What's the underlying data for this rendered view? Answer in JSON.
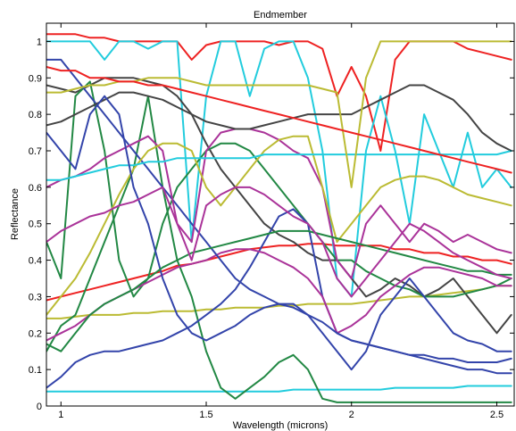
{
  "chart_data": {
    "type": "line",
    "title": "Endmember",
    "xlabel": "Wavelength (microns)",
    "ylabel": "Reflectance",
    "xlim": [
      0.95,
      2.56
    ],
    "ylim": [
      0,
      1.05
    ],
    "xticks": [
      1,
      1.5,
      2,
      2.5
    ],
    "xtick_labels": [
      "1",
      "1.5",
      "2",
      "2.5"
    ],
    "yticks": [
      0,
      0.1,
      0.2,
      0.3,
      0.4,
      0.5,
      0.6,
      0.7,
      0.8,
      0.9,
      1
    ],
    "ytick_labels": [
      "0",
      "0.1",
      "0.2",
      "0.3",
      "0.4",
      "0.5",
      "0.6",
      "0.7",
      "0.8",
      "0.9",
      "1"
    ],
    "grid": false,
    "legend": "none",
    "x": [
      0.95,
      1.0,
      1.05,
      1.1,
      1.15,
      1.2,
      1.25,
      1.3,
      1.35,
      1.4,
      1.45,
      1.5,
      1.55,
      1.6,
      1.65,
      1.7,
      1.75,
      1.8,
      1.85,
      1.9,
      1.95,
      2.0,
      2.05,
      2.1,
      2.15,
      2.2,
      2.25,
      2.3,
      2.35,
      2.4,
      2.45,
      2.5,
      2.55
    ],
    "series": [
      {
        "color": "#22ccdd",
        "values": [
          0.04,
          0.04,
          0.04,
          0.04,
          0.04,
          0.04,
          0.04,
          0.04,
          0.04,
          0.04,
          0.04,
          0.04,
          0.04,
          0.04,
          0.04,
          0.04,
          0.04,
          0.045,
          0.045,
          0.045,
          0.045,
          0.045,
          0.045,
          0.045,
          0.05,
          0.05,
          0.05,
          0.05,
          0.05,
          0.055,
          0.055,
          0.055,
          0.055
        ]
      },
      {
        "color": "#bbbb33",
        "values": [
          0.24,
          0.24,
          0.245,
          0.25,
          0.25,
          0.25,
          0.255,
          0.255,
          0.26,
          0.26,
          0.26,
          0.265,
          0.265,
          0.27,
          0.27,
          0.27,
          0.275,
          0.275,
          0.28,
          0.28,
          0.28,
          0.28,
          0.285,
          0.29,
          0.295,
          0.3,
          0.3,
          0.305,
          0.31,
          0.315,
          0.32,
          0.33,
          0.33
        ]
      },
      {
        "color": "#ee2222",
        "values": [
          0.29,
          0.3,
          0.31,
          0.32,
          0.33,
          0.34,
          0.35,
          0.36,
          0.37,
          0.385,
          0.39,
          0.4,
          0.41,
          0.42,
          0.43,
          0.435,
          0.44,
          0.44,
          0.445,
          0.445,
          0.44,
          0.44,
          0.44,
          0.44,
          0.43,
          0.43,
          0.42,
          0.42,
          0.41,
          0.41,
          0.4,
          0.4,
          0.39
        ]
      },
      {
        "color": "#ee2222",
        "values": [
          1.02,
          1.02,
          1.02,
          1.01,
          1.01,
          1.0,
          1.0,
          1.0,
          1.0,
          1.0,
          0.95,
          0.99,
          1.0,
          1.0,
          1.0,
          1.0,
          0.99,
          1.0,
          1.0,
          0.98,
          0.85,
          0.93,
          0.85,
          0.7,
          0.95,
          1.0,
          1.0,
          1.0,
          1.0,
          0.98,
          0.97,
          0.96,
          0.95
        ]
      },
      {
        "color": "#22ccdd",
        "values": [
          1.0,
          1.0,
          1.0,
          1.0,
          0.95,
          1.0,
          1.0,
          0.98,
          1.0,
          1.0,
          0.45,
          0.85,
          1.0,
          1.0,
          0.85,
          0.98,
          1.0,
          1.0,
          0.9,
          0.7,
          0.35,
          0.3,
          0.7,
          0.85,
          0.7,
          0.5,
          0.8,
          0.7,
          0.6,
          0.75,
          0.6,
          0.65,
          0.6
        ]
      },
      {
        "color": "#444444",
        "values": [
          0.88,
          0.87,
          0.86,
          0.88,
          0.9,
          0.9,
          0.9,
          0.89,
          0.88,
          0.85,
          0.8,
          0.72,
          0.65,
          0.6,
          0.55,
          0.5,
          0.47,
          0.45,
          0.42,
          0.4,
          0.4,
          0.35,
          0.3,
          0.32,
          0.35,
          0.33,
          0.3,
          0.32,
          0.35,
          0.3,
          0.25,
          0.2,
          0.25
        ]
      },
      {
        "color": "#228844",
        "values": [
          0.45,
          0.35,
          0.85,
          0.89,
          0.7,
          0.4,
          0.3,
          0.35,
          0.5,
          0.6,
          0.65,
          0.7,
          0.72,
          0.72,
          0.7,
          0.65,
          0.6,
          0.55,
          0.5,
          0.45,
          0.4,
          0.4,
          0.37,
          0.35,
          0.33,
          0.32,
          0.3,
          0.3,
          0.3,
          0.31,
          0.32,
          0.33,
          0.35
        ]
      },
      {
        "color": "#228844",
        "values": [
          0.15,
          0.22,
          0.25,
          0.35,
          0.45,
          0.55,
          0.65,
          0.85,
          0.6,
          0.4,
          0.3,
          0.15,
          0.05,
          0.02,
          0.05,
          0.08,
          0.12,
          0.14,
          0.1,
          0.02,
          0.01,
          0.01,
          0.01,
          0.01,
          0.01,
          0.01,
          0.01,
          0.01,
          0.01,
          0.01,
          0.01,
          0.01,
          0.01
        ]
      },
      {
        "color": "#3344aa",
        "values": [
          0.05,
          0.08,
          0.12,
          0.14,
          0.15,
          0.15,
          0.16,
          0.17,
          0.18,
          0.2,
          0.22,
          0.25,
          0.28,
          0.32,
          0.38,
          0.45,
          0.52,
          0.54,
          0.5,
          0.3,
          0.2,
          0.18,
          0.17,
          0.16,
          0.15,
          0.14,
          0.14,
          0.13,
          0.13,
          0.12,
          0.12,
          0.12,
          0.13
        ]
      },
      {
        "color": "#aa3399",
        "values": [
          0.18,
          0.2,
          0.22,
          0.25,
          0.28,
          0.3,
          0.32,
          0.34,
          0.36,
          0.38,
          0.39,
          0.4,
          0.42,
          0.43,
          0.43,
          0.42,
          0.4,
          0.38,
          0.35,
          0.3,
          0.2,
          0.22,
          0.25,
          0.3,
          0.33,
          0.36,
          0.38,
          0.38,
          0.37,
          0.36,
          0.35,
          0.33,
          0.33
        ]
      },
      {
        "color": "#3344aa",
        "values": [
          0.95,
          0.95,
          0.9,
          0.85,
          0.8,
          0.75,
          0.7,
          0.65,
          0.6,
          0.55,
          0.5,
          0.45,
          0.4,
          0.35,
          0.32,
          0.3,
          0.28,
          0.27,
          0.25,
          0.23,
          0.2,
          0.18,
          0.17,
          0.16,
          0.15,
          0.14,
          0.13,
          0.12,
          0.11,
          0.1,
          0.1,
          0.09,
          0.09
        ]
      },
      {
        "color": "#aa3399",
        "values": [
          0.6,
          0.62,
          0.63,
          0.65,
          0.68,
          0.7,
          0.72,
          0.74,
          0.7,
          0.5,
          0.45,
          0.7,
          0.75,
          0.76,
          0.76,
          0.75,
          0.73,
          0.7,
          0.68,
          0.6,
          0.4,
          0.35,
          0.5,
          0.55,
          0.5,
          0.45,
          0.5,
          0.48,
          0.45,
          0.47,
          0.45,
          0.43,
          0.42
        ]
      },
      {
        "color": "#bbbb33",
        "values": [
          0.25,
          0.3,
          0.35,
          0.42,
          0.5,
          0.58,
          0.65,
          0.7,
          0.72,
          0.72,
          0.7,
          0.6,
          0.55,
          0.6,
          0.65,
          0.7,
          0.73,
          0.74,
          0.74,
          0.6,
          0.45,
          0.5,
          0.55,
          0.6,
          0.62,
          0.63,
          0.63,
          0.62,
          0.6,
          0.58,
          0.57,
          0.56,
          0.55
        ]
      },
      {
        "color": "#444444",
        "values": [
          0.77,
          0.78,
          0.8,
          0.82,
          0.84,
          0.86,
          0.86,
          0.85,
          0.84,
          0.82,
          0.8,
          0.78,
          0.77,
          0.76,
          0.76,
          0.77,
          0.78,
          0.79,
          0.8,
          0.8,
          0.8,
          0.8,
          0.82,
          0.84,
          0.86,
          0.88,
          0.88,
          0.86,
          0.84,
          0.8,
          0.75,
          0.72,
          0.7
        ]
      },
      {
        "color": "#22ccdd",
        "values": [
          0.62,
          0.62,
          0.63,
          0.64,
          0.65,
          0.66,
          0.66,
          0.67,
          0.67,
          0.68,
          0.68,
          0.68,
          0.68,
          0.68,
          0.68,
          0.69,
          0.69,
          0.69,
          0.69,
          0.69,
          0.69,
          0.69,
          0.69,
          0.69,
          0.69,
          0.69,
          0.69,
          0.69,
          0.69,
          0.69,
          0.69,
          0.69,
          0.7
        ]
      },
      {
        "color": "#3344aa",
        "values": [
          0.75,
          0.7,
          0.65,
          0.8,
          0.85,
          0.8,
          0.6,
          0.5,
          0.35,
          0.25,
          0.2,
          0.18,
          0.2,
          0.22,
          0.25,
          0.27,
          0.28,
          0.28,
          0.25,
          0.2,
          0.15,
          0.1,
          0.15,
          0.25,
          0.3,
          0.35,
          0.3,
          0.25,
          0.2,
          0.18,
          0.17,
          0.15,
          0.15
        ]
      },
      {
        "color": "#bbbb33",
        "values": [
          0.86,
          0.86,
          0.87,
          0.88,
          0.88,
          0.89,
          0.89,
          0.9,
          0.9,
          0.9,
          0.89,
          0.88,
          0.88,
          0.88,
          0.88,
          0.88,
          0.88,
          0.88,
          0.88,
          0.87,
          0.86,
          0.6,
          0.9,
          1.0,
          1.0,
          1.0,
          1.0,
          1.0,
          1.0,
          1.0,
          1.0,
          1.0,
          1.0
        ]
      },
      {
        "color": "#228844",
        "values": [
          0.17,
          0.15,
          0.2,
          0.25,
          0.28,
          0.3,
          0.32,
          0.35,
          0.38,
          0.4,
          0.42,
          0.43,
          0.44,
          0.45,
          0.46,
          0.47,
          0.48,
          0.48,
          0.48,
          0.47,
          0.46,
          0.45,
          0.44,
          0.43,
          0.42,
          0.41,
          0.4,
          0.39,
          0.38,
          0.37,
          0.37,
          0.36,
          0.36
        ]
      },
      {
        "color": "#ee2222",
        "values": [
          0.93,
          0.92,
          0.92,
          0.9,
          0.9,
          0.89,
          0.89,
          0.88,
          0.88,
          0.87,
          0.86,
          0.85,
          0.84,
          0.83,
          0.82,
          0.81,
          0.8,
          0.79,
          0.78,
          0.77,
          0.76,
          0.75,
          0.74,
          0.73,
          0.72,
          0.71,
          0.7,
          0.69,
          0.68,
          0.67,
          0.66,
          0.65,
          0.64
        ]
      },
      {
        "color": "#aa3399",
        "values": [
          0.45,
          0.48,
          0.5,
          0.52,
          0.53,
          0.55,
          0.56,
          0.58,
          0.6,
          0.5,
          0.4,
          0.55,
          0.58,
          0.6,
          0.6,
          0.58,
          0.55,
          0.52,
          0.5,
          0.45,
          0.35,
          0.3,
          0.35,
          0.4,
          0.45,
          0.5,
          0.48,
          0.45,
          0.42,
          0.4,
          0.38,
          0.36,
          0.35
        ]
      }
    ]
  }
}
